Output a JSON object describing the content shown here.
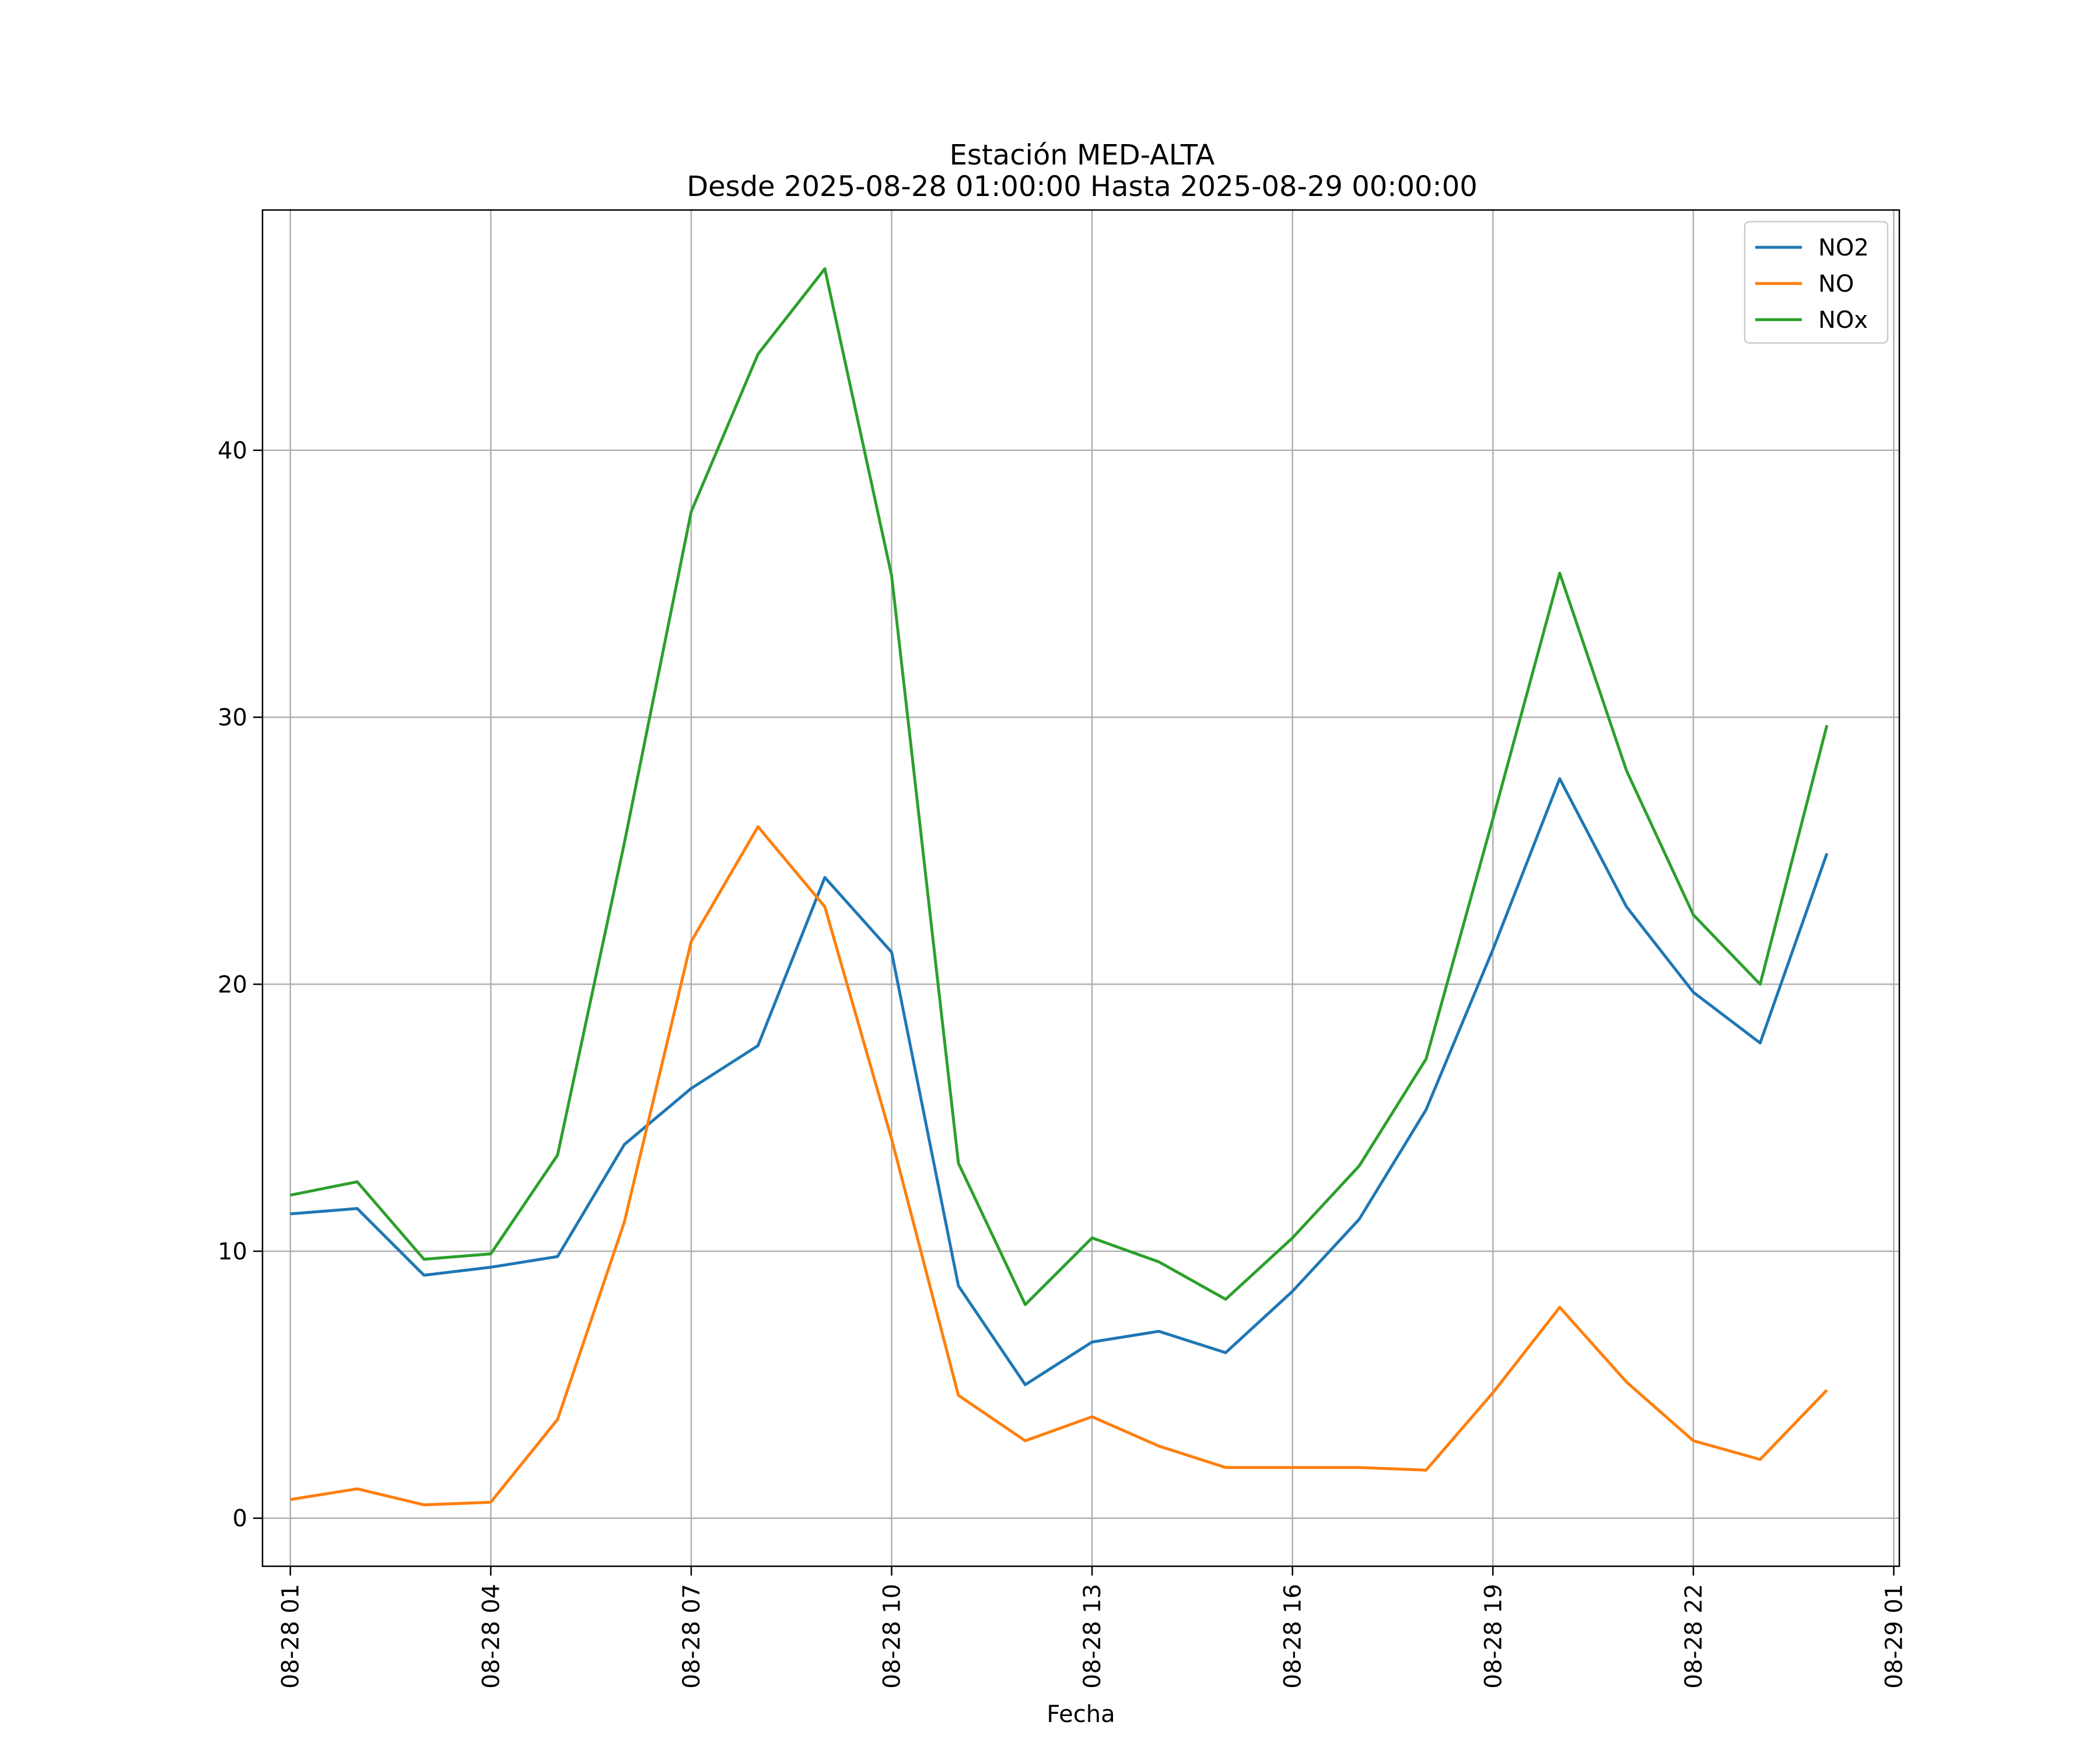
{
  "chart_data": {
    "type": "line",
    "title": "Estación MED-ALTA",
    "subtitle": "Desde 2025-08-28 01:00:00 Hasta 2025-08-29 00:00:00",
    "xlabel": "Fecha",
    "ylabel": "",
    "x": [
      "08-28 01:00",
      "08-28 02:00",
      "08-28 03:00",
      "08-28 04:00",
      "08-28 05:00",
      "08-28 06:00",
      "08-28 07:00",
      "08-28 08:00",
      "08-28 09:00",
      "08-28 10:00",
      "08-28 11:00",
      "08-28 12:00",
      "08-28 13:00",
      "08-28 14:00",
      "08-28 15:00",
      "08-28 16:00",
      "08-28 17:00",
      "08-28 18:00",
      "08-28 19:00",
      "08-28 20:00",
      "08-28 21:00",
      "08-28 22:00",
      "08-28 23:00",
      "08-29 00:00"
    ],
    "xlim": [
      "08-28 00:35",
      "08-29 01:05"
    ],
    "x_ticks": [
      "08-28 01",
      "08-28 04",
      "08-28 07",
      "08-28 10",
      "08-28 13",
      "08-28 16",
      "08-28 19",
      "08-28 22",
      "08-29 01"
    ],
    "ylim": [
      -1.8,
      49
    ],
    "y_ticks": [
      0,
      10,
      20,
      30,
      40
    ],
    "grid": true,
    "legend_position": "top-right",
    "series": [
      {
        "name": "NO2",
        "color": "#1f77b4",
        "values": [
          11.4,
          11.6,
          9.1,
          9.4,
          9.8,
          14.0,
          16.1,
          17.7,
          24.0,
          21.2,
          8.7,
          5.0,
          6.6,
          7.0,
          6.2,
          8.5,
          11.2,
          15.3,
          21.3,
          27.7,
          22.9,
          19.7,
          17.8,
          24.9
        ]
      },
      {
        "name": "NO",
        "color": "#ff7f0e",
        "values": [
          0.7,
          1.1,
          0.5,
          0.6,
          3.7,
          11.1,
          21.6,
          25.9,
          22.9,
          14.2,
          4.6,
          2.9,
          3.8,
          2.7,
          1.9,
          1.9,
          1.9,
          1.8,
          4.7,
          7.9,
          5.1,
          2.9,
          2.2,
          4.8
        ]
      },
      {
        "name": "NOx",
        "color": "#2ca02c",
        "values": [
          12.1,
          12.6,
          9.7,
          9.9,
          13.6,
          25.3,
          37.7,
          43.6,
          46.8,
          35.3,
          13.3,
          8.0,
          10.5,
          9.6,
          8.2,
          10.5,
          13.2,
          17.2,
          26.2,
          35.4,
          28.0,
          22.6,
          20.0,
          29.7
        ]
      }
    ]
  }
}
